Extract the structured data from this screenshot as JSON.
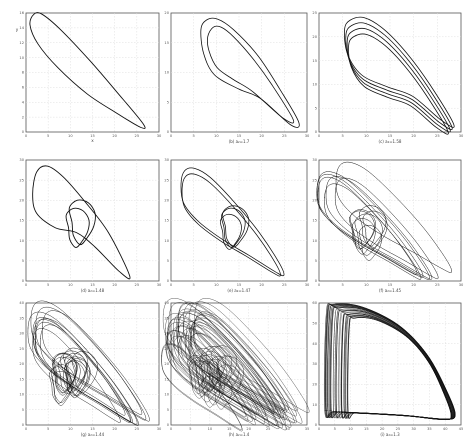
{
  "panels": [
    {
      "id": "a",
      "caption": "",
      "xlabel": "x",
      "ylabel": "y",
      "xticks": [
        "0",
        "5",
        "10",
        "15",
        "20",
        "25",
        "30"
      ],
      "yticks": [
        "0",
        "2",
        "4",
        "6",
        "8",
        "10",
        "12",
        "14",
        "16"
      ]
    },
    {
      "id": "b",
      "caption": "(b) a₂=1.7",
      "xlabel": "",
      "ylabel": "",
      "xticks": [
        "0",
        "5",
        "10",
        "15",
        "20",
        "25",
        "30"
      ],
      "yticks": [
        "0",
        "5",
        "10",
        "15",
        "20"
      ]
    },
    {
      "id": "c",
      "caption": "(c) a₂=1.58",
      "xlabel": "",
      "ylabel": "",
      "xticks": [
        "0",
        "5",
        "10",
        "15",
        "20",
        "25",
        "30"
      ],
      "yticks": [
        "0",
        "5",
        "10",
        "15",
        "20",
        "25"
      ]
    },
    {
      "id": "d",
      "caption": "(d) a₂=1.48",
      "xlabel": "",
      "ylabel": "",
      "xticks": [
        "0",
        "5",
        "10",
        "15",
        "20",
        "25",
        "30"
      ],
      "yticks": [
        "0",
        "5",
        "10",
        "15",
        "20",
        "25",
        "30"
      ]
    },
    {
      "id": "e",
      "caption": "(e) a₂=1.47",
      "xlabel": "",
      "ylabel": "",
      "xticks": [
        "0",
        "5",
        "10",
        "15",
        "20",
        "25",
        "30"
      ],
      "yticks": [
        "0",
        "5",
        "10",
        "15",
        "20",
        "25",
        "30"
      ]
    },
    {
      "id": "f",
      "caption": "(f) a₂=1.45",
      "xlabel": "",
      "ylabel": "",
      "xticks": [
        "0",
        "5",
        "10",
        "15",
        "20",
        "25",
        "30"
      ],
      "yticks": [
        "0",
        "5",
        "10",
        "15",
        "20",
        "25",
        "30"
      ]
    },
    {
      "id": "g",
      "caption": "(g) a₂=1.44",
      "xlabel": "",
      "ylabel": "",
      "xticks": [
        "0",
        "5",
        "10",
        "15",
        "20",
        "25",
        "30"
      ],
      "yticks": [
        "0",
        "5",
        "10",
        "15",
        "20",
        "25",
        "30",
        "35",
        "40"
      ]
    },
    {
      "id": "h",
      "caption": "(h) a₂=1.4",
      "xlabel": "",
      "ylabel": "",
      "xticks": [
        "0",
        "5",
        "10",
        "15",
        "20",
        "25",
        "30",
        "35"
      ],
      "yticks": [
        "0",
        "5",
        "10",
        "15",
        "20",
        "25",
        "30",
        "35",
        "40"
      ]
    },
    {
      "id": "i",
      "caption": "(i) a₂=1.3",
      "xlabel": "",
      "ylabel": "",
      "xticks": [
        "0",
        "5",
        "10",
        "15",
        "20",
        "25",
        "30",
        "35",
        "40",
        "45"
      ],
      "yticks": [
        "0",
        "10",
        "20",
        "30",
        "40",
        "50",
        "60"
      ]
    }
  ],
  "colors": {
    "curve": "#111111",
    "frame": "#555555",
    "grid": "#dddddd"
  }
}
